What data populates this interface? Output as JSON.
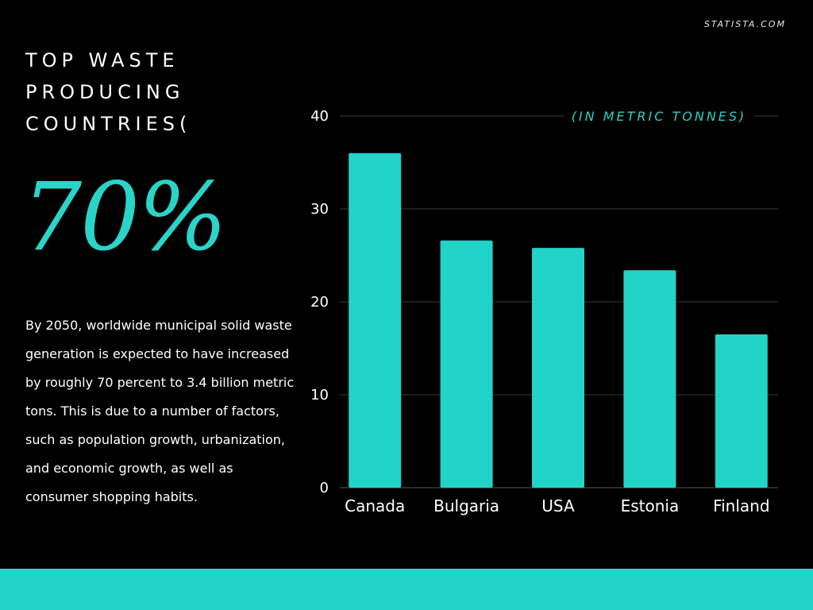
{
  "source": "STATISTA.COM",
  "title": "TOP WASTE PRODUCING COUNTRIES(",
  "big_stat": "70%",
  "description": "By 2050, worldwide municipal solid waste generation is expected to have increased by roughly 70 percent to 3.4 billion metric tons. This is due to a number of factors, such as population growth, urbanization, and economic growth, as well as consumer shopping habits.",
  "colors": {
    "background": "#000000",
    "accent": "#22d3c7",
    "text": "#ffffff",
    "gridline": "#3a3a3a"
  },
  "chart_data": {
    "type": "bar",
    "title": "",
    "unit_label": "(IN METRIC TONNES)",
    "xlabel": "",
    "ylabel": "",
    "categories": [
      "Canada",
      "Bulgaria",
      "USA",
      "Estonia",
      "Finland"
    ],
    "values": [
      36,
      26.6,
      25.8,
      23.4,
      16.5
    ],
    "ylim": [
      0,
      40
    ],
    "yticks": [
      0,
      10,
      20,
      30,
      40
    ],
    "grid": true,
    "legend": "none"
  }
}
